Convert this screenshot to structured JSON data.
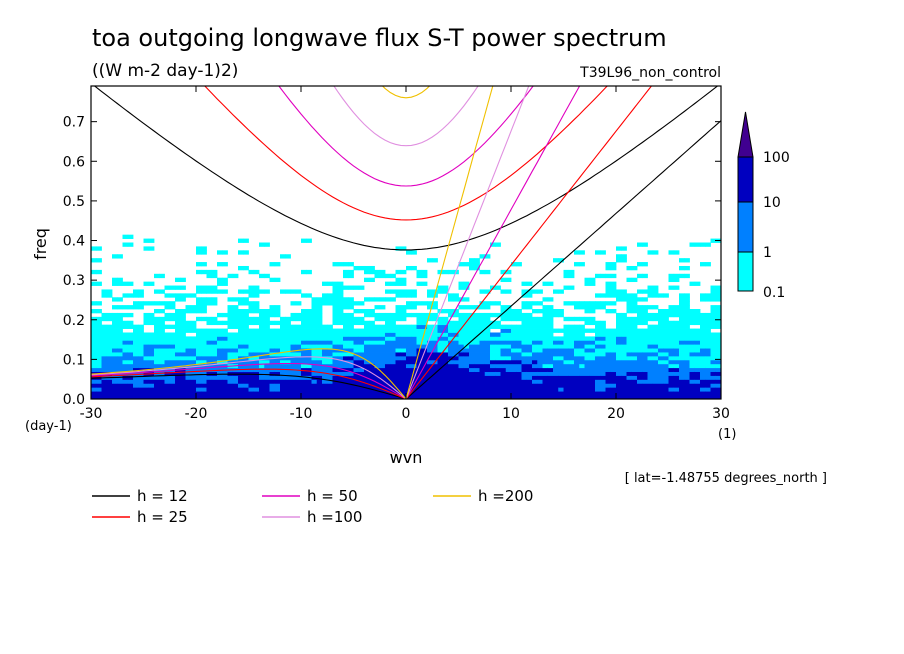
{
  "chart_data": {
    "type": "heatmap",
    "title": "toa outgoing longwave flux S-T power spectrum",
    "subtitle": "((W m-2 day-1)2)",
    "run_label": "T39L96_non_control",
    "xlabel": "wvn",
    "ylabel": "freq",
    "x_unit": "(1)",
    "y_unit": "(day-1)",
    "xlim": [
      -30,
      30
    ],
    "ylim": [
      0,
      0.79
    ],
    "xticks": [
      "-30",
      "-20",
      "-10",
      "0",
      "10",
      "20",
      "30"
    ],
    "yticks": [
      "0.0",
      "0.1",
      "0.2",
      "0.3",
      "0.4",
      "0.5",
      "0.6",
      "0.7"
    ],
    "note": "[ lat=-1.48755 degrees_north ]",
    "colorbar": {
      "labels": [
        "0.1",
        "1",
        "10",
        "100"
      ],
      "levels": [
        0.1,
        1,
        10,
        100
      ],
      "colors": [
        "#00ffff",
        "#0080ff",
        "#0000c0",
        "#400090"
      ]
    },
    "series": [
      {
        "name": "h = 12",
        "h": 12,
        "color": "#000000"
      },
      {
        "name": "h = 25",
        "h": 25,
        "color": "#ff0000"
      },
      {
        "name": "h = 50",
        "h": 50,
        "color": "#e000c0"
      },
      {
        "name": "h =100",
        "h": 100,
        "color": "#e090e0"
      },
      {
        "name": "h =200",
        "h": 200,
        "color": "#f0c000"
      }
    ],
    "grid": false
  }
}
